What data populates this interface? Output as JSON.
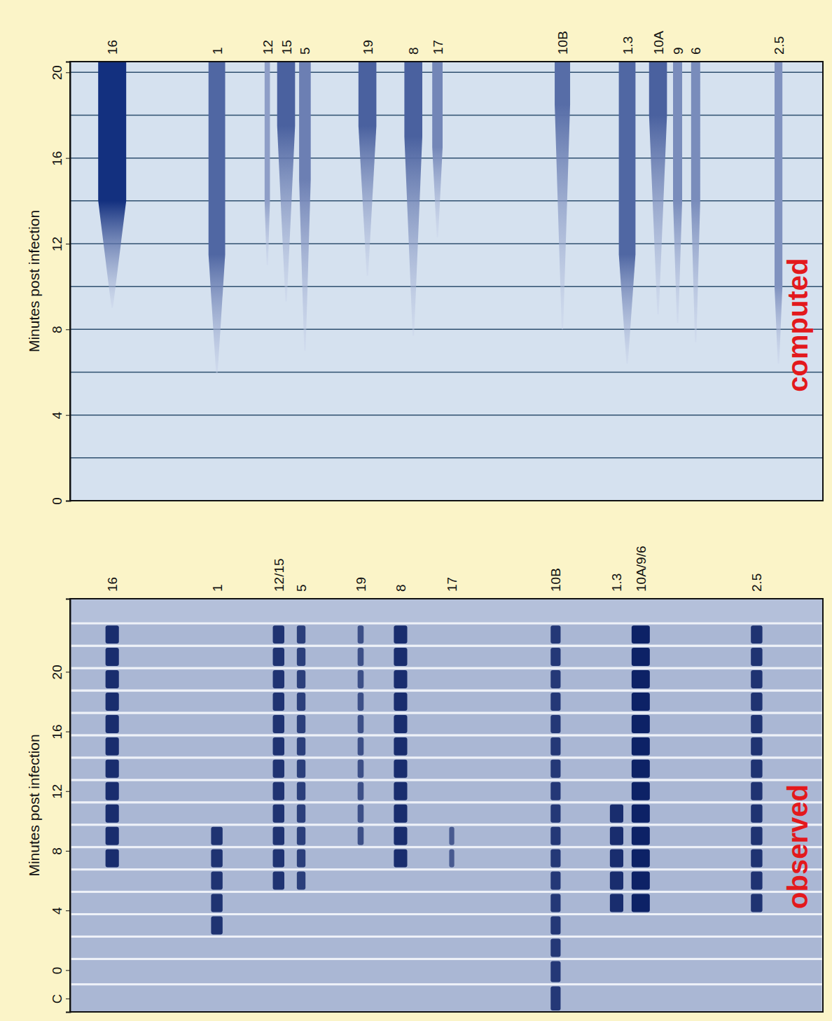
{
  "chart_data": [
    {
      "type": "band",
      "title": "computed",
      "y_label": "Minutes post infection",
      "xlim": [
        0,
        100
      ],
      "ylim": [
        0,
        20.5
      ],
      "yticks": [
        0,
        4,
        8,
        12,
        16,
        20
      ],
      "grid": true,
      "grid_lines": [
        2,
        4,
        6,
        8,
        10,
        12,
        14,
        16,
        18,
        20
      ],
      "tick_labels": "y",
      "color": "#13307f",
      "bands": [
        {
          "name": "16",
          "mobility": 5.6,
          "onset": 9.0,
          "full": 14.0,
          "level": 1.0
        },
        {
          "name": "1",
          "mobility": 19.5,
          "onset": 5.9,
          "full": 11.5,
          "level": 0.55
        },
        {
          "name": "12",
          "mobility": 26.2,
          "onset": 11.0,
          "full": 14.0,
          "level": 0.1
        },
        {
          "name": "15",
          "mobility": 28.7,
          "onset": 9.3,
          "full": 17.5,
          "level": 0.6
        },
        {
          "name": "5",
          "mobility": 31.2,
          "onset": 7.0,
          "full": 15.0,
          "level": 0.35
        },
        {
          "name": "19",
          "mobility": 39.5,
          "onset": 10.5,
          "full": 17.5,
          "level": 0.6
        },
        {
          "name": "8",
          "mobility": 45.6,
          "onset": 7.7,
          "full": 17.0,
          "level": 0.6
        },
        {
          "name": "17",
          "mobility": 48.8,
          "onset": 12.3,
          "full": 16.5,
          "level": 0.3
        },
        {
          "name": "10B",
          "mobility": 65.4,
          "onset": 8.0,
          "full": 18.5,
          "level": 0.5
        },
        {
          "name": "1.3",
          "mobility": 74.0,
          "onset": 6.4,
          "full": 11.5,
          "level": 0.55
        },
        {
          "name": "10A",
          "mobility": 78.1,
          "onset": 8.7,
          "full": 18.0,
          "level": 0.6
        },
        {
          "name": "9",
          "mobility": 80.7,
          "onset": 8.3,
          "full": 14.0,
          "level": 0.25
        },
        {
          "name": "6",
          "mobility": 83.1,
          "onset": 7.4,
          "full": 14.0,
          "level": 0.25
        },
        {
          "name": "2.5",
          "mobility": 94.1,
          "onset": 6.4,
          "full": 10.0,
          "level": 0.2
        }
      ]
    },
    {
      "type": "gel",
      "title": "observed",
      "y_label": "Minutes post infection",
      "xlim": [
        0,
        100
      ],
      "ylim": [
        -2.8,
        24.9
      ],
      "yticks": [
        {
          "value": -1.9,
          "label": "C"
        },
        0,
        4,
        8,
        12,
        16,
        20
      ],
      "tick_labels": "y",
      "color": "#0d2266",
      "lanes": [
        -1.9,
        0,
        1.5,
        3,
        4.5,
        6,
        7.5,
        9,
        10.5,
        12,
        13.5,
        15,
        16.5,
        18,
        19.5,
        21,
        22.5
      ],
      "bands": [
        {
          "name": "16",
          "mobility": 5.6,
          "onset": 7,
          "end": 22.5,
          "level": 0.9
        },
        {
          "name": "1",
          "mobility": 19.5,
          "onset": 3,
          "end": 9,
          "level": 0.85
        },
        {
          "name": "12/15",
          "mobility": 27.7,
          "onset": 5,
          "end": 22.5,
          "level": 0.85
        },
        {
          "name": "5",
          "mobility": 30.7,
          "onset": 5,
          "end": 22.5,
          "level": 0.75
        },
        {
          "name": "19",
          "mobility": 38.6,
          "onset": 8,
          "end": 22.5,
          "level": 0.6
        },
        {
          "name": "8",
          "mobility": 43.9,
          "onset": 7,
          "end": 22.5,
          "level": 0.9
        },
        {
          "name": "17",
          "mobility": 50.7,
          "onset": 7,
          "end": 9,
          "level": 0.5
        },
        {
          "name": "10B",
          "mobility": 64.5,
          "onset": -2.8,
          "end": 22.5,
          "level": 0.8
        },
        {
          "name": "1.3",
          "mobility": 72.6,
          "onset": 4,
          "end": 11,
          "level": 0.9
        },
        {
          "name": "10A/9/6",
          "mobility": 75.8,
          "onset": 4,
          "end": 22.5,
          "level": 1.0
        },
        {
          "name": "2.5",
          "mobility": 91.2,
          "onset": 4,
          "end": 22.5,
          "level": 0.85
        }
      ]
    }
  ]
}
